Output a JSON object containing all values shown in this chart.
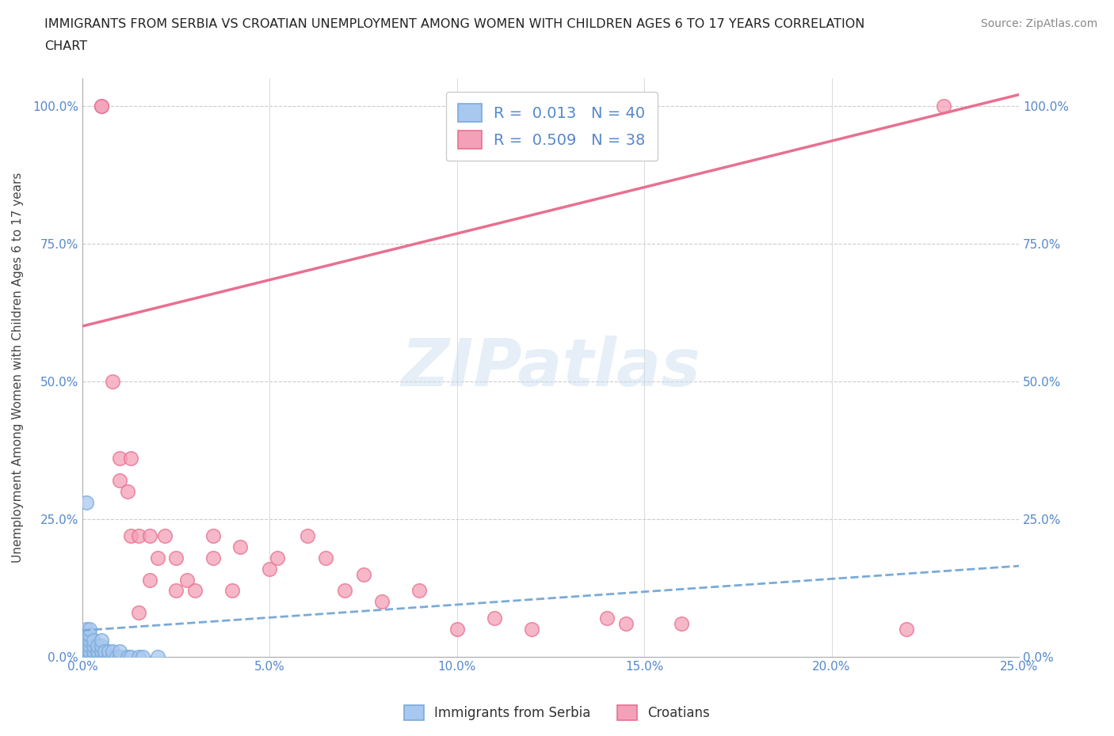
{
  "title_line1": "IMMIGRANTS FROM SERBIA VS CROATIAN UNEMPLOYMENT AMONG WOMEN WITH CHILDREN AGES 6 TO 17 YEARS CORRELATION",
  "title_line2": "CHART",
  "source_text": "Source: ZipAtlas.com",
  "ylabel": "Unemployment Among Women with Children Ages 6 to 17 years",
  "xlim": [
    0,
    0.25
  ],
  "ylim": [
    0,
    1.05
  ],
  "xticks": [
    0.0,
    0.05,
    0.1,
    0.15,
    0.2,
    0.25
  ],
  "yticks": [
    0.0,
    0.25,
    0.5,
    0.75,
    1.0
  ],
  "xticklabels": [
    "0.0%",
    "5.0%",
    "10.0%",
    "15.0%",
    "20.0%",
    "25.0%"
  ],
  "yticklabels": [
    "0.0%",
    "25.0%",
    "50.0%",
    "75.0%",
    "100.0%"
  ],
  "serbia_R": 0.013,
  "serbia_N": 40,
  "croatia_R": 0.509,
  "croatia_N": 38,
  "serbia_color": "#a8c8f0",
  "croatia_color": "#f4a0b8",
  "serbia_edge_color": "#7aaad8",
  "croatia_edge_color": "#e87090",
  "serbia_line_color": "#7aaad8",
  "croatia_line_color": "#e87090",
  "legend_serbia_label": "Immigrants from Serbia",
  "legend_croatia_label": "Croatians",
  "tick_color": "#5588cc",
  "serbia_x": [
    0.001,
    0.001,
    0.001,
    0.001,
    0.001,
    0.001,
    0.001,
    0.001,
    0.002,
    0.002,
    0.002,
    0.002,
    0.002,
    0.002,
    0.003,
    0.003,
    0.003,
    0.003,
    0.004,
    0.004,
    0.004,
    0.005,
    0.005,
    0.005,
    0.005,
    0.006,
    0.006,
    0.007,
    0.007,
    0.008,
    0.008,
    0.009,
    0.01,
    0.01,
    0.012,
    0.013,
    0.015,
    0.016,
    0.02,
    0.001
  ],
  "serbia_y": [
    0.0,
    0.005,
    0.01,
    0.015,
    0.02,
    0.03,
    0.04,
    0.05,
    0.0,
    0.01,
    0.02,
    0.03,
    0.04,
    0.05,
    0.0,
    0.01,
    0.02,
    0.03,
    0.0,
    0.01,
    0.02,
    0.0,
    0.01,
    0.02,
    0.03,
    0.0,
    0.01,
    0.0,
    0.01,
    0.0,
    0.01,
    0.0,
    0.0,
    0.01,
    0.0,
    0.0,
    0.0,
    0.0,
    0.0,
    0.28
  ],
  "croatia_x": [
    0.005,
    0.005,
    0.008,
    0.01,
    0.01,
    0.012,
    0.013,
    0.013,
    0.015,
    0.015,
    0.018,
    0.018,
    0.02,
    0.022,
    0.025,
    0.025,
    0.028,
    0.03,
    0.035,
    0.035,
    0.04,
    0.042,
    0.05,
    0.052,
    0.06,
    0.065,
    0.07,
    0.075,
    0.08,
    0.09,
    0.1,
    0.11,
    0.12,
    0.14,
    0.145,
    0.16,
    0.22,
    0.23
  ],
  "croatia_y": [
    1.0,
    1.0,
    0.5,
    0.32,
    0.36,
    0.3,
    0.22,
    0.36,
    0.08,
    0.22,
    0.14,
    0.22,
    0.18,
    0.22,
    0.18,
    0.12,
    0.14,
    0.12,
    0.22,
    0.18,
    0.12,
    0.2,
    0.16,
    0.18,
    0.22,
    0.18,
    0.12,
    0.15,
    0.1,
    0.12,
    0.05,
    0.07,
    0.05,
    0.07,
    0.06,
    0.06,
    0.05,
    1.0
  ],
  "croatia_line_x0": 0.0,
  "croatia_line_y0": 0.6,
  "croatia_line_x1": 0.25,
  "croatia_line_y1": 1.02,
  "serbia_line_x0": 0.0,
  "serbia_line_y0": 0.048,
  "serbia_line_x1": 0.25,
  "serbia_line_y1": 0.165
}
